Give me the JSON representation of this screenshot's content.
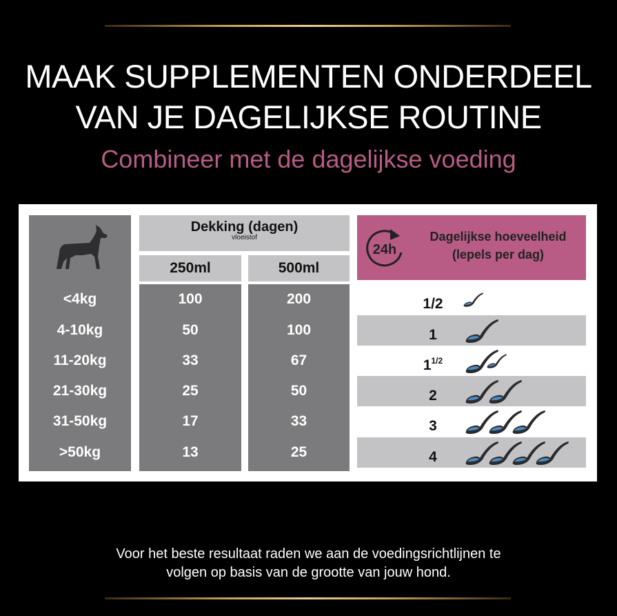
{
  "title": {
    "line1": "MAAK SUPPLEMENTEN ONDERDEEL",
    "line2": "VAN JE DAGELIJKSE ROUTINE"
  },
  "subtitle": "Combineer met de dagelijkse voeding",
  "table": {
    "coverage_header": "Dekking (dagen)",
    "coverage_sub": "vloeistof",
    "sizes": [
      "250ml",
      "500ml"
    ],
    "daily_header_line1": "Dagelijkse hoeveelheid",
    "daily_header_line2": "(lepels per dag)",
    "clock_label": "24h",
    "rows": [
      {
        "weight": "<4kg",
        "v250": "100",
        "v500": "200",
        "spoons_whole": "1/2",
        "spoons_frac": "",
        "spoon_count": 0.5
      },
      {
        "weight": "4-10kg",
        "v250": "50",
        "v500": "100",
        "spoons_whole": "1",
        "spoons_frac": "",
        "spoon_count": 1
      },
      {
        "weight": "11-20kg",
        "v250": "33",
        "v500": "67",
        "spoons_whole": "1",
        "spoons_frac": "1/2",
        "spoon_count": 1.5
      },
      {
        "weight": "21-30kg",
        "v250": "25",
        "v500": "50",
        "spoons_whole": "2",
        "spoons_frac": "",
        "spoon_count": 2
      },
      {
        "weight": "31-50kg",
        "v250": "17",
        "v500": "33",
        "spoons_whole": "3",
        "spoons_frac": "",
        "spoon_count": 3
      },
      {
        "weight": ">50kg",
        "v250": "13",
        "v500": "25",
        "spoons_whole": "4",
        "spoons_frac": "",
        "spoon_count": 4
      }
    ]
  },
  "footer": {
    "line1": "Voor het beste resultaat raden we aan de voedingsrichtlijnen te",
    "line2": "volgen op basis van de grootte van jouw hond."
  },
  "colors": {
    "accent": "#b85c85",
    "dark_gray": "#7b7b7d",
    "light_gray": "#c3c3c5",
    "gold": "#c9a25a"
  }
}
